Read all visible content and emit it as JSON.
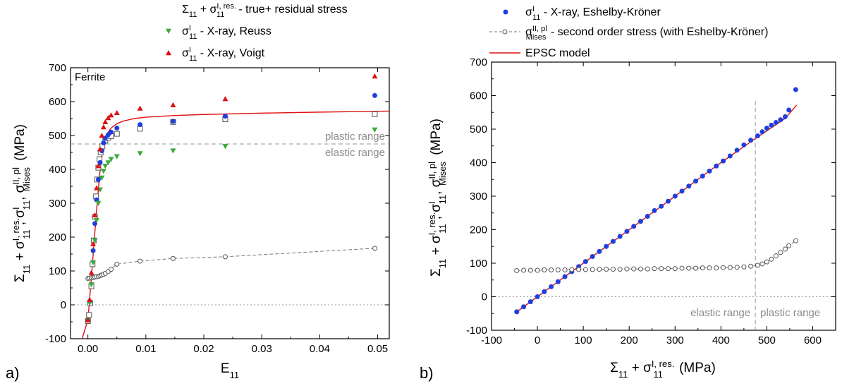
{
  "chart_data": [
    {
      "panel_label": "a)",
      "type": "scatter",
      "annotation": "Ferrite",
      "xlabel": "E",
      "xlabel_sub": "11",
      "ylabel_parts": {
        "s11": "Σ",
        "s11_sub": "11",
        "plus": " + σ",
        "res_sup": "I, res.",
        "res_sub": "11",
        "sep1": ", σ",
        "sig_sup": "I",
        "sig_sub": "11",
        "sep2": ", σ",
        "mises_sup": "II, pl",
        "mises_sub": "Mises",
        "unit": "(MPa)"
      },
      "xlim": [
        -0.003,
        0.052
      ],
      "ylim": [
        -100,
        700
      ],
      "x_ticks": [
        0.0,
        0.01,
        0.02,
        0.03,
        0.04,
        0.05
      ],
      "x_tick_labels": [
        "0.00",
        "0.01",
        "0.02",
        "0.03",
        "0.04",
        "0.05"
      ],
      "y_ticks": [
        -100,
        0,
        100,
        200,
        300,
        400,
        500,
        600,
        700
      ],
      "y_tick_labels": [
        "-100",
        "0",
        "100",
        "200",
        "300",
        "400",
        "500",
        "600",
        "700"
      ],
      "ref_lines": {
        "y_zero": 0,
        "y_transition": 475
      },
      "range_labels": {
        "upper": "plastic range",
        "lower": "elastic range"
      },
      "legend": [
        {
          "label_main": "Σ",
          "label_sub": "11",
          "label_rest": " + σ",
          "label_sup": "I, res.",
          "label_sub2": "11",
          "label_tail": "- true+ residual stress"
        },
        {
          "label_main": "σ",
          "label_sup": "I",
          "label_sub": "11",
          "label_tail": " - X-ray, Reuss"
        },
        {
          "label_main": "σ",
          "label_sup": "I",
          "label_sub": "11",
          "label_tail": " - X-ray, Voigt"
        }
      ],
      "series": [
        {
          "name": "Σ11 + σ11 I,res. - true+ residual stress",
          "marker": "square-open",
          "color": "#555555",
          "x": [
            0.0,
            0.0002,
            0.0004,
            0.0006,
            0.0008,
            0.001,
            0.0012,
            0.0014,
            0.0016,
            0.0018,
            0.002,
            0.0022,
            0.0025,
            0.003,
            0.0035,
            0.004,
            0.005,
            0.009,
            0.0147,
            0.0237,
            0.0495
          ],
          "y": [
            -48,
            -30,
            5,
            55,
            120,
            190,
            260,
            320,
            370,
            405,
            430,
            450,
            468,
            485,
            493,
            498,
            505,
            520,
            540,
            548,
            563
          ]
        },
        {
          "name": "σ11 I - X-ray, Eshelby-Kröner",
          "marker": "circle",
          "color": "#1f3fdd",
          "x": [
            0.0,
            0.0003,
            0.0006,
            0.0009,
            0.0012,
            0.0015,
            0.0018,
            0.0021,
            0.0024,
            0.0027,
            0.003,
            0.0035,
            0.004,
            0.005,
            0.009,
            0.0147,
            0.0237,
            0.0495
          ],
          "y": [
            -45,
            10,
            80,
            160,
            240,
            310,
            370,
            420,
            455,
            478,
            492,
            502,
            510,
            522,
            532,
            542,
            557,
            618
          ]
        },
        {
          "name": "σ11 I - X-ray, Reuss",
          "marker": "triangle-down",
          "color": "#3aaa3a",
          "x": [
            0.0,
            0.0003,
            0.0006,
            0.0009,
            0.0012,
            0.0015,
            0.0018,
            0.0021,
            0.0024,
            0.0027,
            0.003,
            0.0035,
            0.004,
            0.005,
            0.009,
            0.0147,
            0.0237,
            0.0495
          ],
          "y": [
            -45,
            5,
            60,
            125,
            190,
            250,
            300,
            340,
            375,
            395,
            410,
            420,
            430,
            438,
            447,
            455,
            468,
            517
          ]
        },
        {
          "name": "σ11 I - X-ray, Voigt",
          "marker": "triangle-up",
          "color": "#e01010",
          "x": [
            0.0,
            0.0003,
            0.0006,
            0.0009,
            0.0012,
            0.0015,
            0.0018,
            0.0021,
            0.0024,
            0.0027,
            0.003,
            0.0035,
            0.004,
            0.005,
            0.009,
            0.0147,
            0.0237,
            0.0495
          ],
          "y": [
            -45,
            15,
            95,
            180,
            265,
            345,
            410,
            460,
            500,
            525,
            540,
            552,
            560,
            567,
            580,
            590,
            608,
            675
          ]
        },
        {
          "name": "σ Mises II,pl - second order stress",
          "marker": "circle-open-dashed",
          "color": "#555555",
          "x": [
            0.0,
            0.0003,
            0.0006,
            0.0009,
            0.0012,
            0.0015,
            0.0018,
            0.0021,
            0.0024,
            0.0027,
            0.003,
            0.0035,
            0.004,
            0.005,
            0.009,
            0.0147,
            0.0237,
            0.0495
          ],
          "y": [
            78,
            79,
            80,
            81,
            82,
            83,
            84,
            86,
            88,
            90,
            93,
            98,
            105,
            120,
            129,
            137,
            142,
            167
          ]
        }
      ],
      "fit_curve": {
        "name": "EPSC model",
        "color": "#e01010",
        "x": [
          -0.001,
          0.0,
          0.0005,
          0.001,
          0.0015,
          0.002,
          0.0025,
          0.003,
          0.0035,
          0.004,
          0.005,
          0.006,
          0.008,
          0.01,
          0.015,
          0.02,
          0.03,
          0.04,
          0.052
        ],
        "y": [
          -100,
          -45,
          60,
          170,
          280,
          380,
          450,
          490,
          510,
          522,
          535,
          542,
          550,
          554,
          559,
          562,
          566,
          569,
          572
        ]
      }
    },
    {
      "panel_label": "b)",
      "type": "scatter",
      "xlabel_parts": {
        "main": "Σ",
        "sub": "11",
        "plus": " + σ",
        "sup": "I, res.",
        "sub2": "11",
        "unit": "  (MPa)"
      },
      "ylabel_parts": {
        "s11": "Σ",
        "s11_sub": "11",
        "plus": " + σ",
        "res_sup": "I, res.",
        "res_sub": "11",
        "sep1": ", σ",
        "sig_sup": "I",
        "sig_sub": "11",
        "sep2": ", σ",
        "mises_sup": "II, pl",
        "mises_sub": "Mises",
        "unit": "(MPa)"
      },
      "xlim": [
        -100,
        650
      ],
      "ylim": [
        -100,
        700
      ],
      "x_ticks": [
        -100,
        0,
        100,
        200,
        300,
        400,
        500,
        600
      ],
      "x_tick_labels": [
        "-100",
        "0",
        "100",
        "200",
        "300",
        "400",
        "500",
        "600"
      ],
      "y_ticks": [
        -100,
        0,
        100,
        200,
        300,
        400,
        500,
        600,
        700
      ],
      "y_tick_labels": [
        "-100",
        "0",
        "100",
        "200",
        "300",
        "400",
        "500",
        "600",
        "700"
      ],
      "ref_lines": {
        "y_zero": 0,
        "x_transition": 475
      },
      "range_labels": {
        "left": "elastic range",
        "right": "plastic range"
      },
      "legend": [
        {
          "label_main": "σ",
          "label_sup": "I",
          "label_sub": "11",
          "label_tail": " - X-ray, Eshelby-Kröner"
        },
        {
          "label_main": "σ",
          "label_sup": "II, pl",
          "label_sub": "Mises",
          "label_tail": " - second order stress (with Eshelby-Kröner)"
        },
        {
          "label_main": "EPSC model",
          "label_tail": ""
        }
      ],
      "series": [
        {
          "name": "σ11 I - X-ray, Eshelby-Kröner",
          "marker": "circle",
          "color": "#1f3fdd",
          "x": [
            -45,
            -30,
            -15,
            0,
            15,
            30,
            45,
            60,
            75,
            90,
            105,
            120,
            135,
            150,
            165,
            180,
            195,
            210,
            225,
            240,
            255,
            270,
            285,
            300,
            315,
            330,
            345,
            360,
            375,
            390,
            405,
            420,
            435,
            450,
            465,
            480,
            490,
            500,
            510,
            520,
            530,
            540,
            548,
            563
          ],
          "y": [
            -45,
            -30,
            -15,
            0,
            15,
            30,
            45,
            60,
            75,
            90,
            105,
            120,
            135,
            150,
            165,
            180,
            195,
            210,
            225,
            240,
            257,
            270,
            285,
            300,
            315,
            330,
            345,
            360,
            375,
            390,
            405,
            420,
            437,
            453,
            467,
            480,
            492,
            503,
            512,
            520,
            528,
            537,
            557,
            618
          ]
        },
        {
          "name": "σ Mises II,pl - second order stress (with Eshelby-Kröner)",
          "marker": "circle-open",
          "color": "#555555",
          "x": [
            -45,
            -30,
            -15,
            0,
            15,
            30,
            45,
            60,
            75,
            90,
            105,
            120,
            135,
            150,
            165,
            180,
            195,
            210,
            225,
            240,
            255,
            270,
            285,
            300,
            315,
            330,
            345,
            360,
            375,
            390,
            405,
            420,
            435,
            450,
            465,
            480,
            490,
            500,
            510,
            520,
            530,
            540,
            548,
            563
          ],
          "y": [
            78,
            79,
            79,
            79,
            80,
            80,
            80,
            80,
            81,
            81,
            81,
            81,
            82,
            82,
            82,
            82,
            83,
            83,
            83,
            83,
            84,
            84,
            84,
            84,
            85,
            85,
            85,
            86,
            86,
            86,
            87,
            87,
            88,
            89,
            91,
            94,
            98,
            104,
            112,
            122,
            132,
            142,
            152,
            167
          ]
        }
      ],
      "fit_curve": {
        "name": "EPSC model",
        "color": "#e01010",
        "x": [
          -45,
          0,
          100,
          200,
          300,
          400,
          475,
          500,
          540,
          565
        ],
        "y": [
          -45,
          0,
          100,
          200,
          300,
          400,
          472,
          495,
          532,
          572
        ]
      }
    }
  ]
}
